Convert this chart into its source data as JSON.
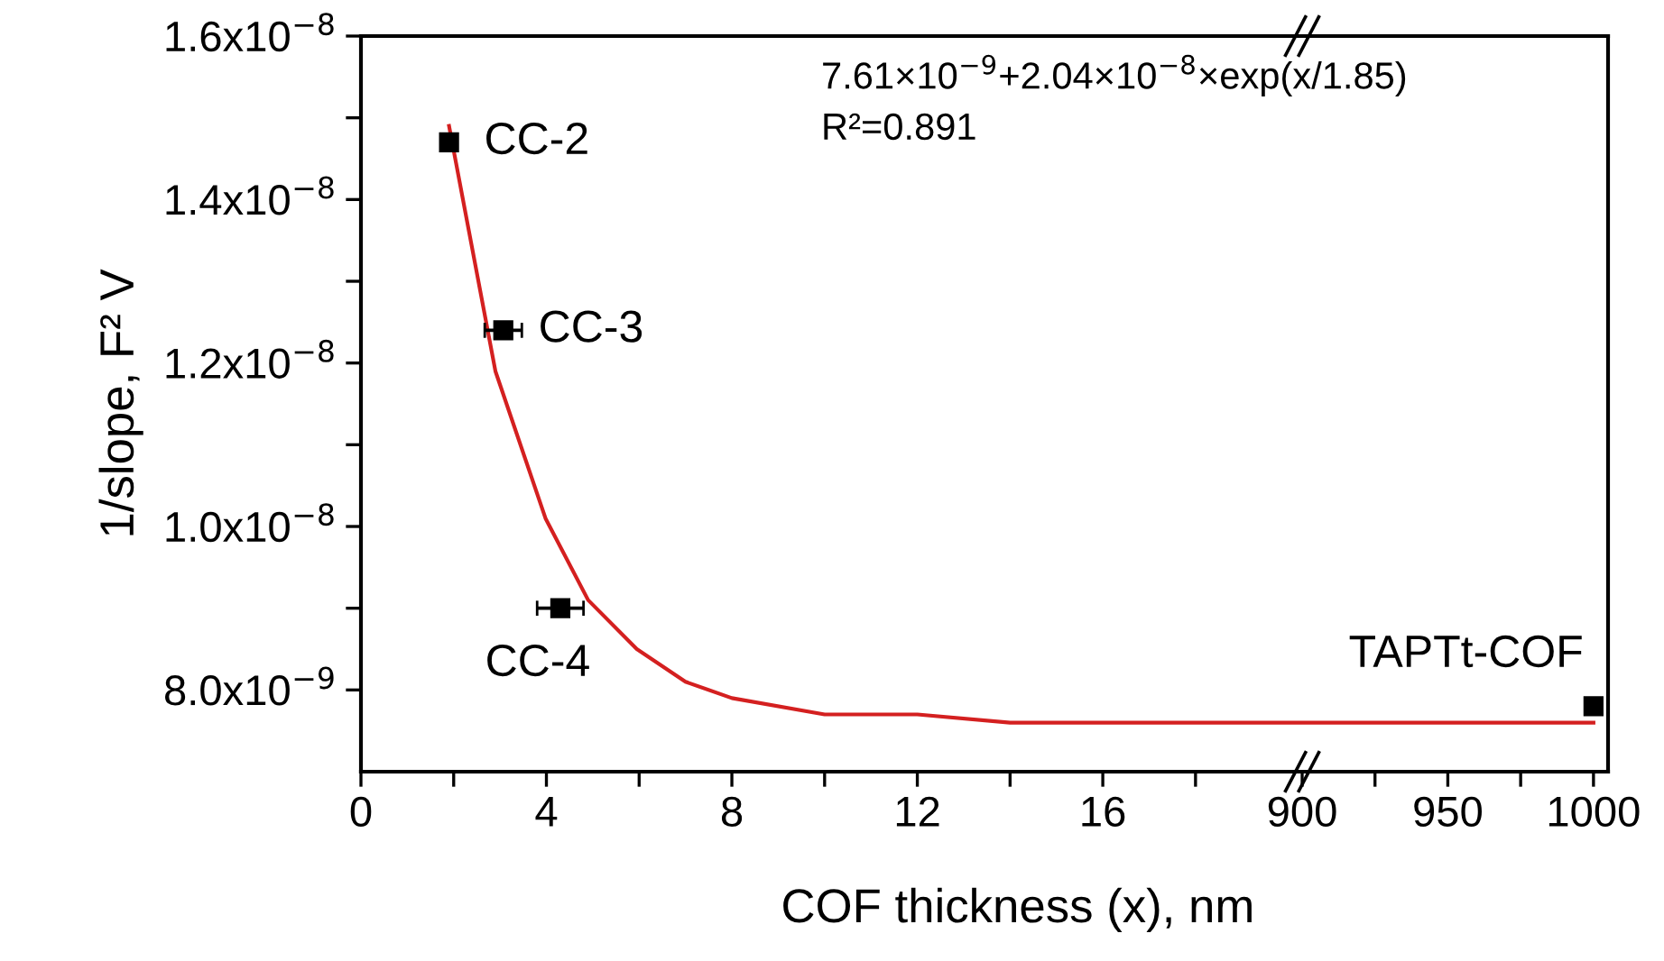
{
  "chart_data": [
    {
      "type": "scatter",
      "xlabel": "COF thickness (x), nm",
      "ylabel": "1/slope, F² V",
      "marker": "square",
      "grid": false,
      "xlim": [
        0,
        20.3
      ],
      "xticks": [
        0,
        {
          "value": 2,
          "label": null
        },
        4,
        {
          "value": 6,
          "label": null
        },
        8,
        {
          "value": 10,
          "label": null
        },
        12,
        {
          "value": 14,
          "label": null
        },
        16,
        {
          "value": 18,
          "label": null
        }
      ],
      "ylim": [
        7e-09,
        1.6e-08
      ],
      "yticks": [
        {
          "value": 8e-09,
          "label": "8.0x10$^{−9}$"
        },
        {
          "value": 9e-09,
          "label": null
        },
        {
          "value": 1e-08,
          "label": "1.0x10$^{−8}$"
        },
        {
          "value": 1.1e-08,
          "label": null
        },
        {
          "value": 1.2e-08,
          "label": "1.2x10$^{−8}$"
        },
        {
          "value": 1.3e-08,
          "label": null
        },
        {
          "value": 1.4e-08,
          "label": "1.4x10$^{−8}$"
        },
        {
          "value": 1.5e-08,
          "label": null
        },
        {
          "value": 1.6e-08,
          "label": "1.6x10$^{−8}$"
        }
      ],
      "series": [
        {
          "color": "#000000",
          "x": [
            1.9,
            3.07,
            4.3
          ],
          "values": [
            1.47e-08,
            1.24e-08,
            9e-09
          ],
          "xerrors": [
            0.15,
            0.4,
            0.5
          ]
        },
        {
          "type": "line",
          "color": "#d42020",
          "marker": "none",
          "x": [
            1.9,
            2.9,
            3.98,
            4.9,
            5.95,
            7.0,
            8.0,
            10,
            12,
            14,
            16,
            20.3
          ],
          "values": [
            1.49e-08,
            1.19e-08,
            1.01e-08,
            9.1e-09,
            8.5e-09,
            8.1e-09,
            7.9e-09,
            7.7e-09,
            7.7e-09,
            7.6e-09,
            7.6e-09,
            7.6e-09
          ]
        }
      ],
      "annotations": [
        {
          "text": "CC-2",
          "x": 1.9,
          "y": 1.47e-08
        },
        {
          "text": "CC-3",
          "x": 3.07,
          "y": 1.24e-08
        },
        {
          "text": "CC-4",
          "x": 4.3,
          "y": 9e-09
        }
      ]
    },
    {
      "type": "scatter",
      "marker": "square",
      "grid": false,
      "tick_labels": "x",
      "xlim": [
        900,
        1005
      ],
      "xticks": [
        900,
        {
          "value": 925,
          "label": null
        },
        950,
        {
          "value": 975,
          "label": null
        },
        1000
      ],
      "ylim": [
        7e-09,
        1.6e-08
      ],
      "series": [
        {
          "color": "#000000",
          "x": [
            1000
          ],
          "values": [
            7.8e-09
          ]
        },
        {
          "type": "line",
          "color": "#d42020",
          "marker": "none",
          "x": [
            900,
            1000
          ],
          "values": [
            7.6e-09,
            7.6e-09
          ]
        }
      ],
      "annotations": [
        {
          "text": "TAPTt-COF",
          "x": 1000,
          "y": 7.8e-09
        },
        "7.61×10$^{−9}$+2.04×10$^{−8}$×exp(x/1.85)",
        "R²=0.891"
      ]
    }
  ]
}
